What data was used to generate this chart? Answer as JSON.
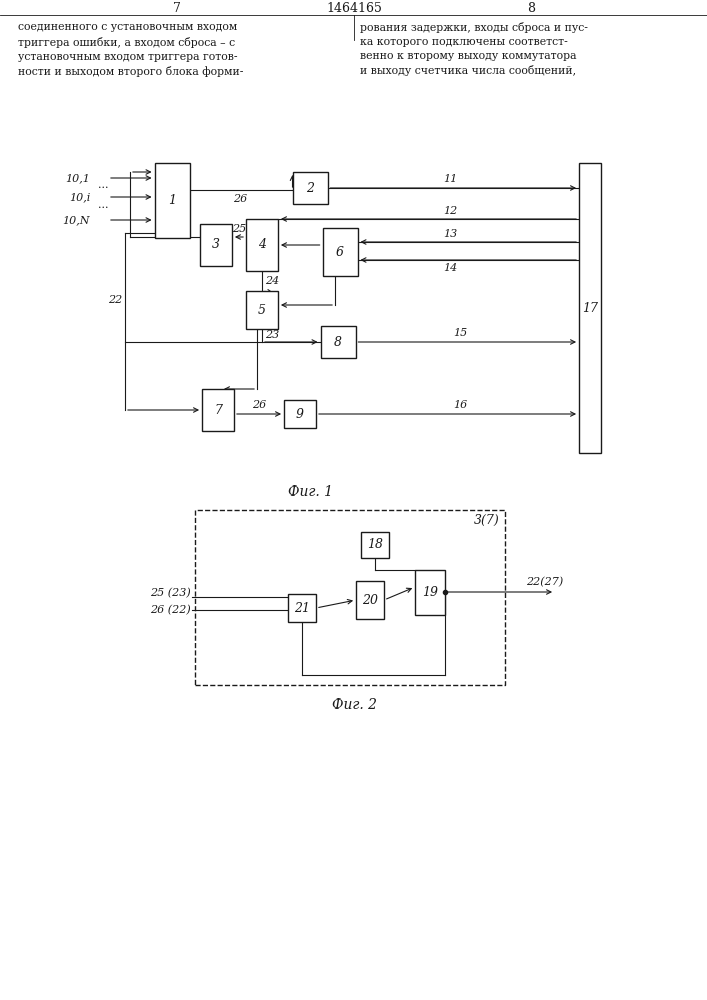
{
  "page_title": "1464165",
  "page_num_left": "7",
  "page_num_right": "8",
  "text_left": "соединенного с установочным входом\nтриггера ошибки, а входом сброса – с\nустановочным входом триггера готов-\nности и выходом второго блока форми-",
  "text_right": "рования задержки, входы сброса и пус-\nка которого подключены соответст-\nвенно к второму выходу коммутатора\nи выходу счетчика числа сообщений,",
  "fig1_caption": "Фиг. 1",
  "fig2_caption": "Фиг. 2",
  "bg_color": "#ffffff",
  "line_color": "#1a1a1a",
  "box_color": "#ffffff"
}
